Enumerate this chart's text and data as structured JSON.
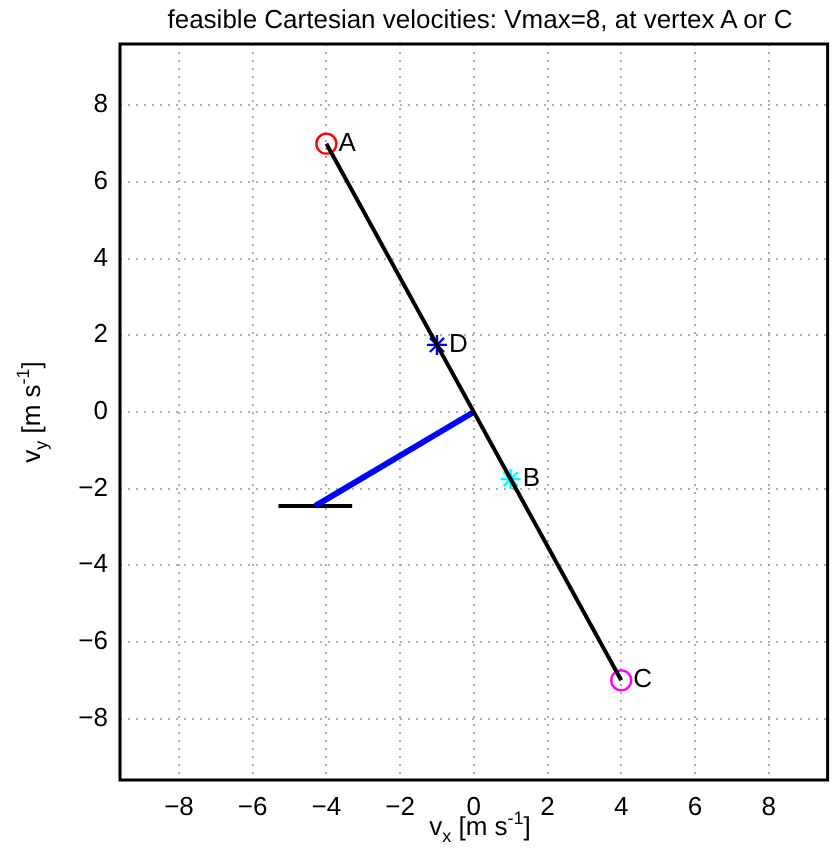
{
  "chart_data": {
    "type": "line",
    "title": "feasible Cartesian velocities: Vmax=8, at vertex A or C",
    "xlabel": "v$_{x}$ [m s$^{-1}$]",
    "ylabel": "v$_{y}$ [m s$^{-1}$]",
    "xlim": [
      -9.6,
      9.6
    ],
    "ylim": [
      -9.6,
      9.6
    ],
    "xticks": [
      -8,
      -6,
      -4,
      -2,
      0,
      2,
      4,
      6,
      8
    ],
    "yticks": [
      -8,
      -6,
      -4,
      -2,
      0,
      2,
      4,
      6,
      8
    ],
    "grid": true,
    "legend": false,
    "series": [
      {
        "type": "line",
        "color": "#000000",
        "marker": "none",
        "x": [
          -4,
          4
        ],
        "values": [
          7,
          -7
        ]
      },
      {
        "type": "line",
        "color": "#0000ff",
        "marker": "none",
        "x": [
          0,
          -4.3
        ],
        "values": [
          0,
          -2.45
        ]
      },
      {
        "type": "line",
        "color": "#000000",
        "marker": "none",
        "x": [
          -5.3,
          -3.3
        ],
        "values": [
          -2.45,
          -2.45
        ]
      },
      {
        "type": "scatter",
        "color": "#ff0000",
        "marker": "circle",
        "x": [
          -4
        ],
        "values": [
          7
        ]
      },
      {
        "type": "scatter",
        "color": "#ff00ff",
        "marker": "circle",
        "x": [
          4
        ],
        "values": [
          -7
        ]
      },
      {
        "type": "scatter",
        "color": "#0000ff",
        "marker": "cross",
        "x": [
          -1
        ],
        "values": [
          1.75
        ]
      },
      {
        "type": "scatter",
        "color": "#00ffff",
        "marker": "cross",
        "x": [
          1
        ],
        "values": [
          -1.75
        ]
      }
    ],
    "annotations": [
      {
        "text": "A",
        "x": -4,
        "y": 7
      },
      {
        "text": "B",
        "x": 1,
        "y": -1.75
      },
      {
        "text": "C",
        "x": 4,
        "y": -7
      },
      {
        "text": "D",
        "x": -1,
        "y": 1.75
      }
    ]
  }
}
